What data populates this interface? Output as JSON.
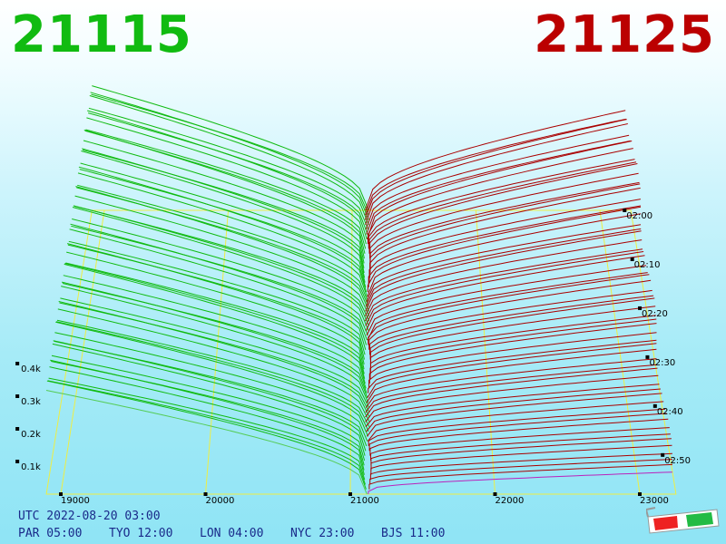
{
  "header": {
    "bid_price": "21115",
    "ask_price": "21125",
    "bid_color": "#11bb11",
    "ask_color": "#bb0000"
  },
  "footer": {
    "utc": "UTC 2022-08-20 03:00",
    "zones": [
      "PAR 05:00",
      "TYO 12:00",
      "LON 04:00",
      "NYC 23:00",
      "BJS 11:00"
    ]
  },
  "icons": {
    "glasses": "3d-glasses-icon"
  },
  "chart_data": {
    "type": "3d-depth-history",
    "price_axis": {
      "ticks": [
        19000,
        20000,
        21000,
        22000,
        23000
      ],
      "labels": [
        "19000",
        "20000",
        "21000",
        "22000",
        "23000"
      ]
    },
    "volume_axis": {
      "ticks": [
        100,
        200,
        300,
        400
      ],
      "labels": [
        "0.1k",
        "0.2k",
        "0.3k",
        "0.4k"
      ]
    },
    "time_axis": {
      "labels": [
        "02:00",
        "02:10",
        "02:20",
        "02:30",
        "02:40",
        "02:50"
      ]
    },
    "bid_side": {
      "color": "#11bb11",
      "best_price": 21115,
      "cumulative_volume_at_19000_recent": 310,
      "cumulative_volume_at_19000_oldest": 470
    },
    "ask_side": {
      "color": "#bb0000",
      "best_price": 21125,
      "cumulative_volume_at_23000_recent": 60,
      "cumulative_volume_at_23000_oldest": 380
    },
    "grid": true
  }
}
